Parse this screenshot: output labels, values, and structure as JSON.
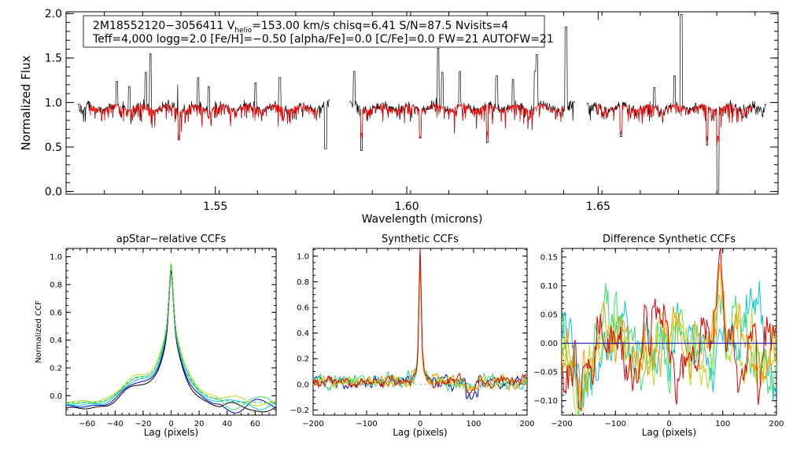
{
  "chart_data": [
    {
      "type": "line",
      "panel": "top-spectrum",
      "title": "",
      "xlabel": "Wavelength (microns)",
      "ylabel": "Normalized Flux",
      "xlim": [
        1.511,
        1.697
      ],
      "ylim": [
        -0.03,
        2.02
      ],
      "xticks": [
        1.55,
        1.6,
        1.65
      ],
      "xtick_labels": [
        "1.55",
        "1.60",
        "1.65"
      ],
      "yticks": [
        0.0,
        0.5,
        1.0,
        1.5,
        2.0
      ],
      "ytick_labels": [
        "0.0",
        "0.5",
        "1.0",
        "1.5",
        "2.0"
      ],
      "annotation": {
        "line1_star": "2M18552120−3056411",
        "line1_vhelio_V": "V",
        "line1_vhelio_sub": "helio",
        "line1_vhelio_value": "=153.00 km/s",
        "line1_chisq": "chisq=6.41",
        "line1_sn": "S/N=87.5",
        "line1_nvisits": "Nvisits=4",
        "line2": "Teff=4,000 logg=2.0 [Fe/H]=−0.50 [alpha/Fe]=0.0 [C/Fe]=0.0 FW=21 AUTOFW=21"
      },
      "detector_chips": [
        [
          1.514,
          1.58
        ],
        [
          1.585,
          1.644
        ],
        [
          1.647,
          1.694
        ]
      ],
      "continuum_level": 0.95,
      "series": [
        {
          "name": "observed spectrum",
          "color": "#000000"
        },
        {
          "name": "synthetic model",
          "color": "#ff0000"
        }
      ],
      "emission_spikes": [
        {
          "x": 1.5243,
          "y": 1.24
        },
        {
          "x": 1.5275,
          "y": 1.18
        },
        {
          "x": 1.5318,
          "y": 1.34
        },
        {
          "x": 1.533,
          "y": 1.55
        },
        {
          "x": 1.5403,
          "y": 1.2
        },
        {
          "x": 1.5455,
          "y": 1.28
        },
        {
          "x": 1.5483,
          "y": 1.18
        },
        {
          "x": 1.5605,
          "y": 1.22
        },
        {
          "x": 1.5668,
          "y": 1.28
        },
        {
          "x": 1.5863,
          "y": 1.35
        },
        {
          "x": 1.6082,
          "y": 1.61
        },
        {
          "x": 1.6093,
          "y": 1.34
        },
        {
          "x": 1.6138,
          "y": 1.35
        },
        {
          "x": 1.6235,
          "y": 1.3
        },
        {
          "x": 1.6278,
          "y": 1.26
        },
        {
          "x": 1.6335,
          "y": 1.35
        },
        {
          "x": 1.634,
          "y": 1.54
        },
        {
          "x": 1.6416,
          "y": 1.85
        },
        {
          "x": 1.6647,
          "y": 1.17
        },
        {
          "x": 1.67,
          "y": 1.3
        },
        {
          "x": 1.6717,
          "y": 1.99
        }
      ],
      "absorption_spikes": [
        {
          "x": 1.5405,
          "y": 0.58
        },
        {
          "x": 1.5788,
          "y": 0.48
        },
        {
          "x": 1.5882,
          "y": 0.46
        },
        {
          "x": 1.6035,
          "y": 0.6
        },
        {
          "x": 1.621,
          "y": 0.55
        },
        {
          "x": 1.656,
          "y": 0.62
        },
        {
          "x": 1.6785,
          "y": 0.52
        },
        {
          "x": 1.6813,
          "y": -0.05
        }
      ]
    },
    {
      "type": "line",
      "panel": "apstar-relative-ccfs",
      "title": "apStar−relative CCFs",
      "xlabel": "Lag (pixels)",
      "ylabel": "Normalized CCF",
      "xlim": [
        -75,
        75
      ],
      "ylim": [
        -0.14,
        1.06
      ],
      "xticks": [
        -60,
        -40,
        -20,
        0,
        20,
        40,
        60
      ],
      "xtick_labels": [
        "−60",
        "−40",
        "−20",
        "0",
        "20",
        "40",
        "60"
      ],
      "yticks": [
        0.0,
        0.2,
        0.4,
        0.6,
        0.8,
        1.0
      ],
      "ytick_labels": [
        "0.0",
        "0.2",
        "0.4",
        "0.6",
        "0.8",
        "1.0"
      ],
      "peak": {
        "lag": 0,
        "value": 1.0
      },
      "shoulder": {
        "lag": -27,
        "value": 0.17
      },
      "series": [
        {
          "name": "ccf-1",
          "color": "#000000"
        },
        {
          "name": "ccf-2",
          "color": "#0000cc"
        },
        {
          "name": "ccf-3",
          "color": "#00c8d8"
        },
        {
          "name": "ccf-4",
          "color": "#3ce06c"
        },
        {
          "name": "ccf-5",
          "color": "#b4e01e"
        },
        {
          "name": "model",
          "color": "#1fbf4f"
        }
      ]
    },
    {
      "type": "line",
      "panel": "synthetic-ccfs",
      "title": "Synthetic CCFs",
      "xlabel": "Lag (pixels)",
      "ylabel": "",
      "xlim": [
        -200,
        200
      ],
      "ylim": [
        -0.24,
        1.06
      ],
      "xticks": [
        -200,
        -100,
        0,
        100,
        200
      ],
      "xtick_labels": [
        "−200",
        "−100",
        "0",
        "100",
        "200"
      ],
      "yticks": [
        -0.2,
        0.0,
        0.2,
        0.4,
        0.6,
        0.8,
        1.0
      ],
      "ytick_labels": [
        "−0.2",
        "0.0",
        "0.2",
        "0.4",
        "0.6",
        "0.8",
        "1.0"
      ],
      "peak": {
        "lag": 0,
        "value": 1.0
      },
      "noise_amplitude": 0.05,
      "series": [
        {
          "name": "visit-1",
          "color": "#0000cc"
        },
        {
          "name": "visit-2",
          "color": "#00c8d8"
        },
        {
          "name": "visit-3",
          "color": "#3ce06c"
        },
        {
          "name": "visit-4",
          "color": "#b4e01e"
        },
        {
          "name": "visit-5",
          "color": "#ff9900"
        },
        {
          "name": "visit-6",
          "color": "#e00000"
        }
      ]
    },
    {
      "type": "line",
      "panel": "difference-synthetic-ccfs",
      "title": "Difference Synthetic CCFs",
      "xlabel": "Lag (pixels)",
      "ylabel": "",
      "xlim": [
        -200,
        200
      ],
      "ylim": [
        -0.125,
        0.165
      ],
      "xticks": [
        -200,
        -100,
        0,
        100,
        200
      ],
      "xtick_labels": [
        "−200",
        "−100",
        "0",
        "100",
        "200"
      ],
      "yticks": [
        -0.1,
        -0.05,
        0.0,
        0.05,
        0.1,
        0.15
      ],
      "ytick_labels": [
        "−0.10",
        "−0.05",
        "0.00",
        "0.05",
        "0.10",
        "0.15"
      ],
      "reference_line": {
        "y": 0.0,
        "color": "#0000aa"
      },
      "features": {
        "max": {
          "lag": 95,
          "value": 0.15
        },
        "min": {
          "lag": 0,
          "value": -0.12
        }
      },
      "series": [
        {
          "name": "diff-1",
          "color": "#00c8d8"
        },
        {
          "name": "diff-2",
          "color": "#3ce06c"
        },
        {
          "name": "diff-3",
          "color": "#b4e01e"
        },
        {
          "name": "diff-4",
          "color": "#ff9900"
        },
        {
          "name": "diff-5",
          "color": "#e00000"
        }
      ]
    }
  ]
}
